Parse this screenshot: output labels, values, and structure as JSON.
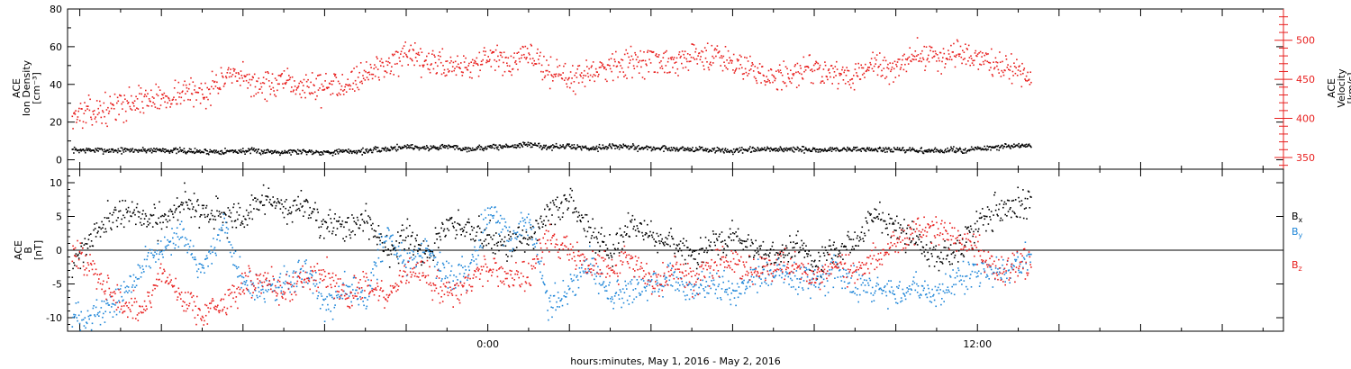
{
  "colors": {
    "black": "#000000",
    "red": "#e8201f",
    "blue": "#1f86d8",
    "axis_red": "#e8201f"
  },
  "caption": "hours:minutes, May  1, 2016 - May  2, 2016",
  "chart_data": [
    {
      "type": "scatter",
      "panel": "top",
      "ylabel_lines": [
        "ACE",
        "Ion Density",
        "[cm⁻³]"
      ],
      "ylabel_right_lines": [
        "ACE",
        "Velocity",
        "[km/s]"
      ],
      "ylim": [
        -5,
        80
      ],
      "yticks": [
        "0",
        "20",
        "40",
        "60",
        "80"
      ],
      "y2lim": [
        335,
        540
      ],
      "y2ticks": [
        "350",
        "400",
        "450",
        "500"
      ],
      "xticks": [
        "0:00",
        "12:00"
      ],
      "x_unit": "hours from 0:00 May 2, 2016",
      "xlim": [
        -10.3,
        19.5
      ],
      "series": [
        {
          "axis": "left",
          "color": "black",
          "x": [
            -10.2,
            -9.0,
            -8.0,
            -7.5,
            -7.0,
            -6.0,
            -5.0,
            -4.5,
            -4.0,
            -3.0,
            -2.5,
            -2.0,
            -1.5,
            -1.0,
            -0.5,
            0.0,
            0.5,
            1.0,
            1.5,
            2.0,
            2.5,
            3.0,
            4.0,
            5.0,
            6.0,
            7.0,
            8.0,
            9.0,
            10.0,
            11.0,
            12.0,
            12.5,
            13.3
          ],
          "y": [
            5.5,
            5.3,
            5.6,
            5.0,
            4.7,
            5.0,
            4.6,
            4.8,
            4.4,
            5.0,
            6.0,
            7.5,
            6.5,
            7.5,
            6.0,
            7.0,
            7.5,
            8.5,
            7.0,
            7.5,
            6.5,
            7.5,
            6.5,
            6.0,
            5.0,
            6.0,
            5.5,
            6.0,
            5.5,
            5.0,
            6.0,
            7.0,
            8.0
          ],
          "spread": 1.5
        },
        {
          "axis": "right",
          "color": "red",
          "x": [
            -10.2,
            -9.5,
            -9.0,
            -8.5,
            -8.0,
            -7.5,
            -7.0,
            -6.5,
            -6.0,
            -5.5,
            -5.0,
            -4.0,
            -3.5,
            -3.0,
            -2.5,
            -2.0,
            -1.5,
            -1.0,
            -0.5,
            0.0,
            0.5,
            1.0,
            1.5,
            2.0,
            2.5,
            3.0,
            3.5,
            4.0,
            4.5,
            5.0,
            5.5,
            6.0,
            6.5,
            7.0,
            7.5,
            8.0,
            8.5,
            9.0,
            9.5,
            10.0,
            10.5,
            11.0,
            11.5,
            12.0,
            12.5,
            13.0,
            13.3
          ],
          "y": [
            405,
            410,
            418,
            425,
            426,
            435,
            433,
            452,
            451,
            442,
            445,
            440,
            448,
            458,
            470,
            478,
            472,
            470,
            468,
            478,
            470,
            482,
            462,
            450,
            462,
            470,
            472,
            475,
            468,
            480,
            482,
            475,
            465,
            450,
            458,
            468,
            455,
            455,
            470,
            462,
            485,
            478,
            485,
            478,
            470,
            460,
            450
          ],
          "spread": 18
        }
      ]
    },
    {
      "type": "scatter",
      "panel": "bottom",
      "ylabel_lines": [
        "ACE",
        "B",
        "[nT]"
      ],
      "ylim": [
        -12,
        12
      ],
      "yticks": [
        "-10",
        "-5",
        "0",
        "5",
        "10"
      ],
      "zero_line": true,
      "xticks": [
        "0:00",
        "12:00"
      ],
      "x_unit": "hours from 0:00 May 2, 2016",
      "xlim": [
        -10.3,
        19.5
      ],
      "series": [
        {
          "name": "B",
          "legend_sub": "x",
          "color": "black",
          "x": [
            -10.2,
            -9.5,
            -9.0,
            -8.5,
            -8.0,
            -7.5,
            -7.0,
            -6.5,
            -6.0,
            -5.5,
            -5.0,
            -4.5,
            -4.0,
            -3.5,
            -3.0,
            -2.5,
            -2.0,
            -1.5,
            -1.0,
            -0.5,
            0.0,
            0.5,
            1.0,
            1.5,
            2.0,
            2.5,
            3.0,
            3.5,
            4.0,
            4.5,
            5.0,
            5.5,
            6.0,
            6.5,
            7.0,
            7.5,
            8.0,
            8.5,
            9.0,
            9.5,
            10.0,
            10.5,
            11.0,
            11.5,
            12.0,
            12.5,
            13.3
          ],
          "y": [
            -2,
            4,
            6,
            5,
            4,
            7.5,
            6,
            5,
            4.5,
            8,
            6,
            7,
            4,
            3,
            5,
            0,
            2,
            -1,
            4,
            3,
            2,
            1,
            2,
            6,
            7,
            3,
            0,
            4,
            2,
            1,
            -1,
            1,
            2,
            0,
            -1,
            1,
            -2,
            0,
            2,
            5,
            3,
            1,
            -1,
            0,
            4.5,
            6,
            7
          ],
          "spread": 2.2
        },
        {
          "name": "B",
          "legend_sub": "y",
          "color": "blue",
          "x": [
            -10.2,
            -9.5,
            -9.0,
            -8.5,
            -8.0,
            -7.5,
            -7.0,
            -6.5,
            -6.0,
            -5.5,
            -5.0,
            -4.5,
            -4.0,
            -3.5,
            -3.0,
            -2.5,
            -2.0,
            -1.5,
            -1.0,
            -0.5,
            0.0,
            0.5,
            1.0,
            1.5,
            2.0,
            2.5,
            3.0,
            3.5,
            4.0,
            4.5,
            5.0,
            5.5,
            6.0,
            6.5,
            7.0,
            7.5,
            8.0,
            8.5,
            9.0,
            9.5,
            10.0,
            10.5,
            11.0,
            11.5,
            12.0,
            12.5,
            13.3
          ],
          "y": [
            -10,
            -9,
            -7,
            -2,
            0,
            2,
            -3,
            4,
            -5,
            -6,
            -5,
            -3,
            -8,
            -5,
            -7,
            3,
            -2,
            0,
            -4,
            -3,
            6,
            2,
            4,
            -8,
            -6,
            -2,
            -7,
            -6,
            -5,
            -4,
            -6,
            -5,
            -6,
            -4,
            -3,
            -4,
            -5,
            -3,
            -5,
            -6,
            -6,
            -5,
            -7,
            -4,
            -3,
            -3,
            -1
          ],
          "spread": 2.2
        },
        {
          "name": "B",
          "legend_sub": "z",
          "color": "red",
          "x": [
            -10.2,
            -9.5,
            -9.0,
            -8.5,
            -8.0,
            -7.5,
            -7.0,
            -6.5,
            -6.0,
            -5.5,
            -5.0,
            -4.5,
            -4.0,
            -3.5,
            -3.0,
            -2.5,
            -2.0,
            -1.5,
            -1.0,
            -0.5,
            0.0,
            0.5,
            1.0,
            1.5,
            2.0,
            2.5,
            3.0,
            3.5,
            4.0,
            4.5,
            5.0,
            5.5,
            6.0,
            6.5,
            7.0,
            7.5,
            8.0,
            8.5,
            9.0,
            9.5,
            10.0,
            10.5,
            11.0,
            11.5,
            12.0,
            12.5,
            13.3
          ],
          "y": [
            0,
            -4,
            -8,
            -9,
            -3,
            -7,
            -9,
            -8,
            -5,
            -4,
            -6,
            -4,
            -3,
            -7,
            -5,
            -7,
            -3,
            -4,
            -6,
            -5,
            -2,
            -4,
            -3,
            2,
            0,
            -2,
            -3,
            -1,
            -5,
            -3,
            -4,
            -2,
            -1,
            -3,
            -2,
            -2,
            -4,
            -2,
            -3,
            -1,
            1,
            3,
            4,
            2,
            0,
            -3,
            -2
          ],
          "spread": 2.2
        }
      ]
    }
  ]
}
